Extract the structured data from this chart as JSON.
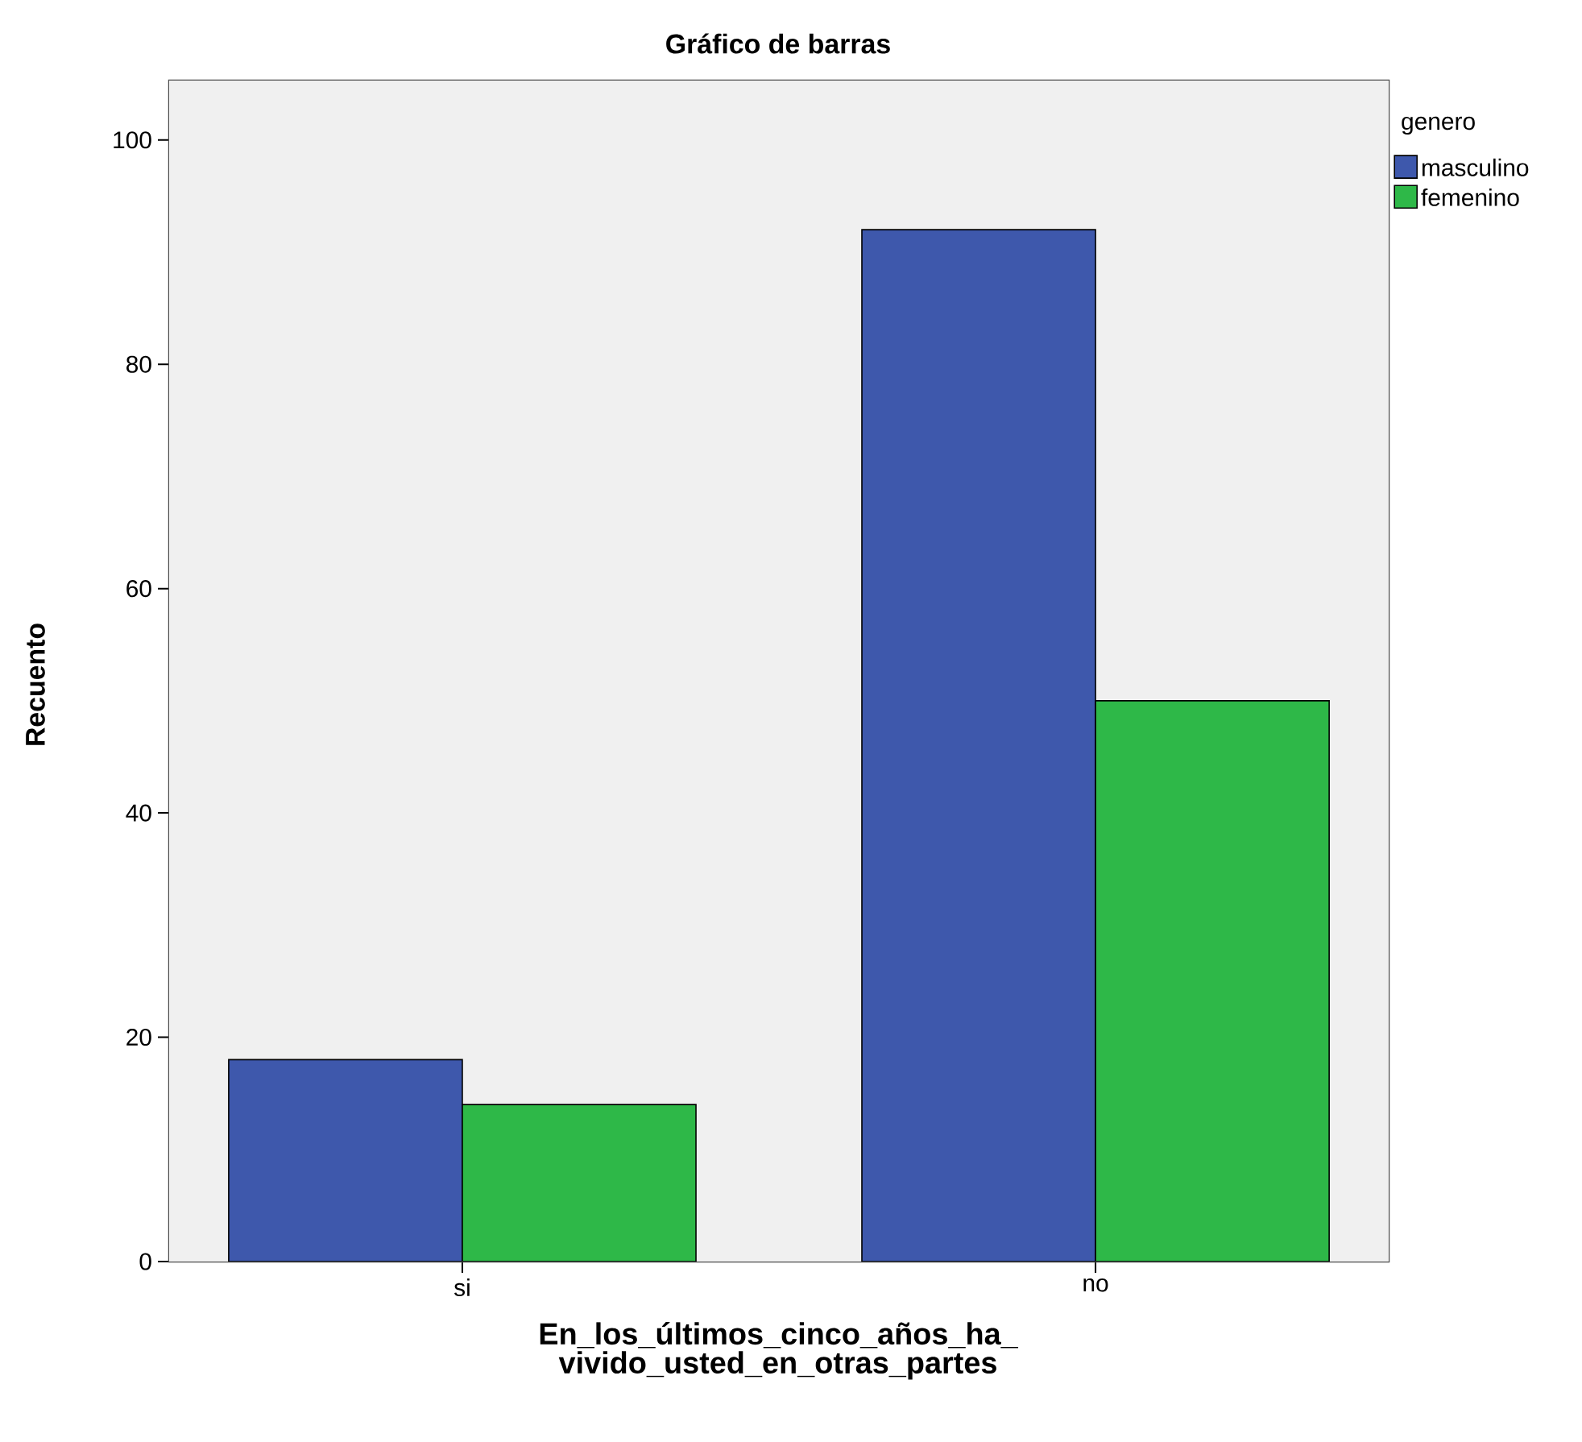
{
  "chart_data": {
    "type": "bar",
    "title": "Gráfico de barras",
    "xlabel": "En_los_últimos_cinco_años_ha_vivido_usted_en_otras_partes",
    "ylabel": "Recuento",
    "legend_title": "genero",
    "categories": [
      "si",
      "no"
    ],
    "series": [
      {
        "name": "masculino",
        "color": "#3e58ac",
        "values": [
          18,
          92
        ]
      },
      {
        "name": "femenino",
        "color": "#2eb848",
        "values": [
          14,
          50
        ]
      }
    ],
    "ylim": [
      0,
      105.3
    ],
    "yticks": [
      0,
      20,
      40,
      60,
      80,
      100
    ],
    "legend": "top right"
  }
}
